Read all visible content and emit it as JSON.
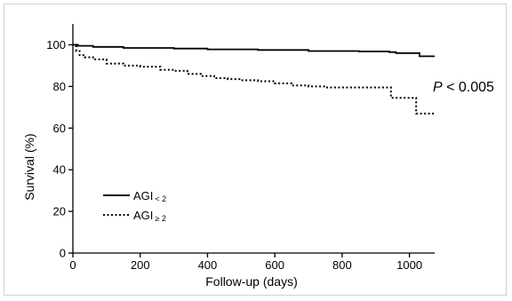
{
  "chart_data": {
    "type": "line",
    "title": "",
    "xlabel": "Follow-up (days)",
    "ylabel": "Survival (%)",
    "xlim": [
      0,
      1075
    ],
    "ylim": [
      0,
      110
    ],
    "xticks": [
      0,
      200,
      400,
      600,
      800,
      1000
    ],
    "yticks": [
      0,
      20,
      40,
      60,
      80,
      100
    ],
    "grid": false,
    "legend_position": "bottom-left",
    "annotation": {
      "prefix": "P",
      "rest": " < 0.005"
    },
    "series": [
      {
        "legend_main": "AGI",
        "legend_sub": "< 2",
        "style": "solid",
        "x": [
          0,
          15,
          60,
          150,
          300,
          400,
          550,
          700,
          850,
          940,
          960,
          1020,
          1030,
          1075
        ],
        "y": [
          100,
          99.5,
          99,
          98.5,
          98.2,
          97.8,
          97.5,
          97,
          96.8,
          96.5,
          96,
          96,
          94.5,
          94.5
        ]
      },
      {
        "legend_main": "AGI",
        "legend_sub": "≥ 2",
        "style": "dotted",
        "x": [
          0,
          10,
          20,
          35,
          60,
          100,
          150,
          200,
          260,
          300,
          340,
          380,
          420,
          460,
          500,
          550,
          600,
          650,
          700,
          750,
          800,
          850,
          940,
          945,
          1010,
          1020,
          1075
        ],
        "y": [
          100,
          97,
          95,
          94,
          93,
          91,
          90,
          89.5,
          88,
          87.5,
          86,
          85,
          84,
          83.5,
          83,
          82.5,
          81.5,
          80.5,
          80,
          79.5,
          79.5,
          79.5,
          79.5,
          74.5,
          74.5,
          67,
          67
        ]
      }
    ]
  }
}
